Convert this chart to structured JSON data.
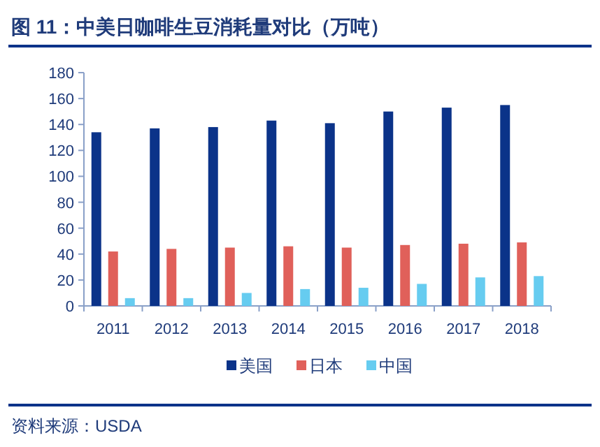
{
  "chart_data": {
    "type": "bar",
    "title": "图 11：中美日咖啡生豆消耗量对比（万吨）",
    "categories": [
      "2011",
      "2012",
      "2013",
      "2014",
      "2015",
      "2016",
      "2017",
      "2018"
    ],
    "series": [
      {
        "name": "美国",
        "color": "#0b3389",
        "values": [
          134,
          137,
          138,
          143,
          141,
          150,
          153,
          155
        ]
      },
      {
        "name": "日本",
        "color": "#e0605a",
        "values": [
          42,
          44,
          45,
          46,
          45,
          47,
          48,
          49
        ]
      },
      {
        "name": "中国",
        "color": "#66ccf0",
        "values": [
          6,
          6,
          10,
          13,
          14,
          17,
          22,
          23
        ]
      }
    ],
    "ylim": [
      0,
      180
    ],
    "yticks": [
      0,
      20,
      40,
      60,
      80,
      100,
      120,
      140,
      160,
      180
    ],
    "grid": false,
    "legend": "bottom",
    "annotations": [
      "资料来源：USDA"
    ]
  }
}
